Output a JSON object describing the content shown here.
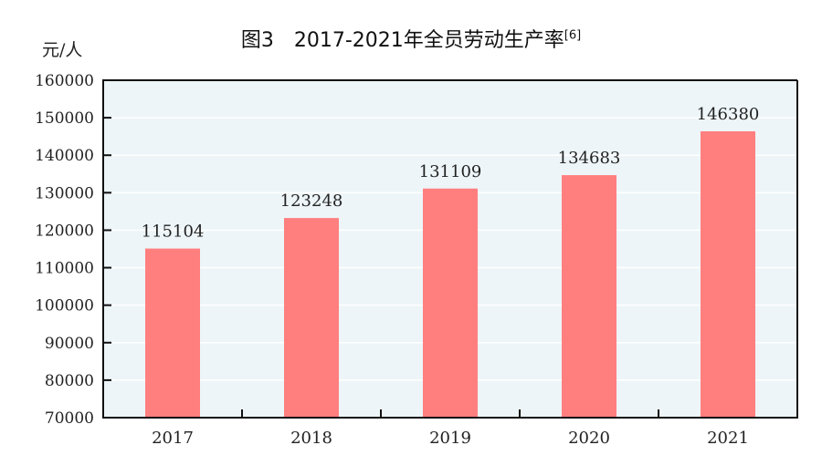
{
  "chart_data": {
    "type": "bar",
    "title": "图3　2017-2021年全员劳动生产率",
    "title_note": "[6]",
    "ylabel": "元/人",
    "xlabel": "",
    "categories": [
      "2017",
      "2018",
      "2019",
      "2020",
      "2021"
    ],
    "values": [
      115104,
      123248,
      131109,
      134683,
      146380
    ],
    "ylim": [
      70000,
      160000
    ],
    "yticks": [
      70000,
      80000,
      90000,
      100000,
      110000,
      120000,
      130000,
      140000,
      150000,
      160000
    ],
    "grid": true,
    "colors": {
      "bar": "#ff7f7f",
      "plot_background": "#edf5f8",
      "grid": "#ffffff"
    }
  }
}
